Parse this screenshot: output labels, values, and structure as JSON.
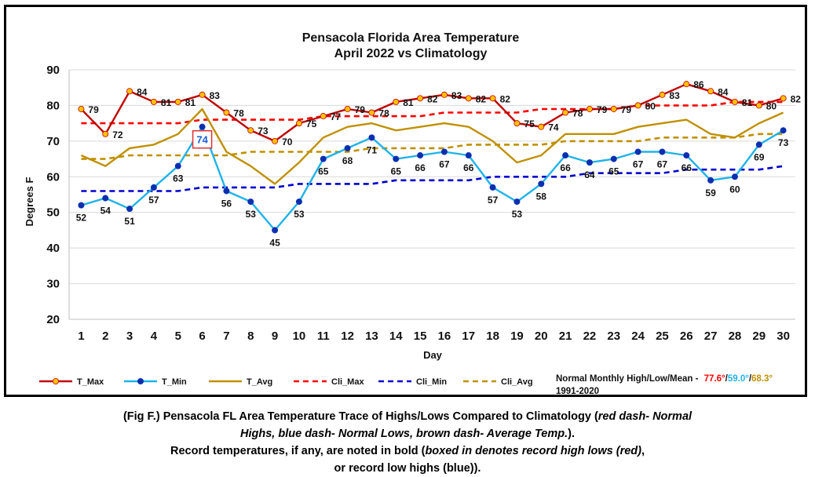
{
  "chart_data": {
    "type": "line",
    "title": "Pensacola Florida Area Temperature",
    "subtitle": "April 2022 vs Climatology",
    "xlabel": "Day",
    "ylabel": "Degrees F",
    "ylim": [
      20,
      90
    ],
    "yticks": [
      20,
      30,
      40,
      50,
      60,
      70,
      80,
      90
    ],
    "grid": true,
    "legend_placement": "bottom",
    "x": [
      1,
      2,
      3,
      4,
      5,
      6,
      7,
      8,
      9,
      10,
      11,
      12,
      13,
      14,
      15,
      16,
      17,
      18,
      19,
      20,
      21,
      22,
      23,
      24,
      25,
      26,
      27,
      28,
      29,
      30
    ],
    "series": [
      {
        "name": "T_Max",
        "color": "#c00000",
        "marker_color": "#ffc000",
        "style": "solid-marker",
        "values": [
          79,
          72,
          84,
          81,
          81,
          83,
          78,
          73,
          70,
          75,
          77,
          79,
          78,
          81,
          82,
          83,
          82,
          82,
          75,
          74,
          78,
          79,
          79,
          80,
          83,
          86,
          84,
          81,
          80,
          82
        ]
      },
      {
        "name": "T_Min",
        "color": "#1fb3e8",
        "marker_color": "#0a2fb0",
        "style": "solid-marker",
        "values": [
          52,
          54,
          51,
          57,
          63,
          74,
          56,
          53,
          45,
          53,
          65,
          68,
          71,
          65,
          66,
          67,
          66,
          57,
          53,
          58,
          66,
          64,
          65,
          67,
          67,
          66,
          59,
          60,
          69,
          73
        ]
      },
      {
        "name": "T_Avg",
        "color": "#bf9000",
        "style": "solid",
        "values": [
          66,
          63,
          68,
          69,
          72,
          79,
          67,
          63,
          58,
          64,
          71,
          74,
          75,
          73,
          74,
          75,
          74,
          70,
          64,
          66,
          72,
          72,
          72,
          74,
          75,
          76,
          72,
          71,
          75,
          78
        ]
      },
      {
        "name": "Cli_Max",
        "color": "#ff0000",
        "style": "dashed",
        "values": [
          75,
          75,
          75,
          75,
          75,
          76,
          76,
          76,
          76,
          76,
          77,
          77,
          77,
          77,
          77,
          78,
          78,
          78,
          78,
          79,
          79,
          79,
          79,
          80,
          80,
          80,
          80,
          81,
          81,
          81
        ]
      },
      {
        "name": "Cli_Min",
        "color": "#0000cc",
        "style": "dashed",
        "values": [
          56,
          56,
          56,
          56,
          56,
          57,
          57,
          57,
          57,
          58,
          58,
          58,
          58,
          59,
          59,
          59,
          59,
          60,
          60,
          60,
          60,
          61,
          61,
          61,
          61,
          62,
          62,
          62,
          62,
          63
        ]
      },
      {
        "name": "Cli_Avg",
        "color": "#bf9000",
        "style": "dashed",
        "values": [
          65,
          65,
          66,
          66,
          66,
          66,
          66,
          67,
          67,
          67,
          67,
          67,
          68,
          68,
          68,
          68,
          69,
          69,
          69,
          69,
          70,
          70,
          70,
          70,
          71,
          71,
          71,
          71,
          72,
          72
        ]
      }
    ],
    "max_labels": [
      "79",
      "72",
      "84",
      "81",
      "81",
      "83",
      "78",
      "73",
      "70",
      "75",
      "77",
      "79",
      "78",
      "81",
      "82",
      "83",
      "82",
      "82",
      "75",
      "74",
      "78",
      "79",
      "79",
      "80",
      "83",
      "86",
      "84",
      "81",
      "80",
      "82"
    ],
    "min_labels": [
      "52",
      "54",
      "51",
      "57",
      "63",
      "74",
      "56",
      "53",
      "45",
      "53",
      "65",
      "68",
      "71",
      "65",
      "66",
      "67",
      "66",
      "57",
      "53",
      "58",
      "66",
      "64",
      "65",
      "67",
      "67",
      "66",
      "59",
      "60",
      "69",
      "73"
    ],
    "record_box": {
      "day": 6,
      "label": "74"
    }
  },
  "note": {
    "line1_prefix": "Normal Monthly High/Low/Mean -",
    "high": "77.6°",
    "sep1": "/",
    "low": "59.0°",
    "sep2": "/",
    "mean": "68.3°",
    "line2": "1991-2020",
    "colors": {
      "high": "#ff0000",
      "low": "#1fb3e8",
      "mean": "#bf9000"
    }
  },
  "caption": {
    "line1_a": "(Fig F.) Pensacola FL Area Temperature Trace of Highs/Lows Compared to Climatology (",
    "line1_b": "red dash- Normal",
    "line2_a": "Highs, blue dash- Normal Lows, brown dash- Average Temp.",
    "line2_b": ").",
    "line3_a": "Record temperatures, if any, are noted in bold (",
    "line3_b": "boxed in denotes record high lows (red)",
    "line3_c": ",",
    "line4_a": "or record low highs (blue)",
    "line4_b": ")."
  }
}
